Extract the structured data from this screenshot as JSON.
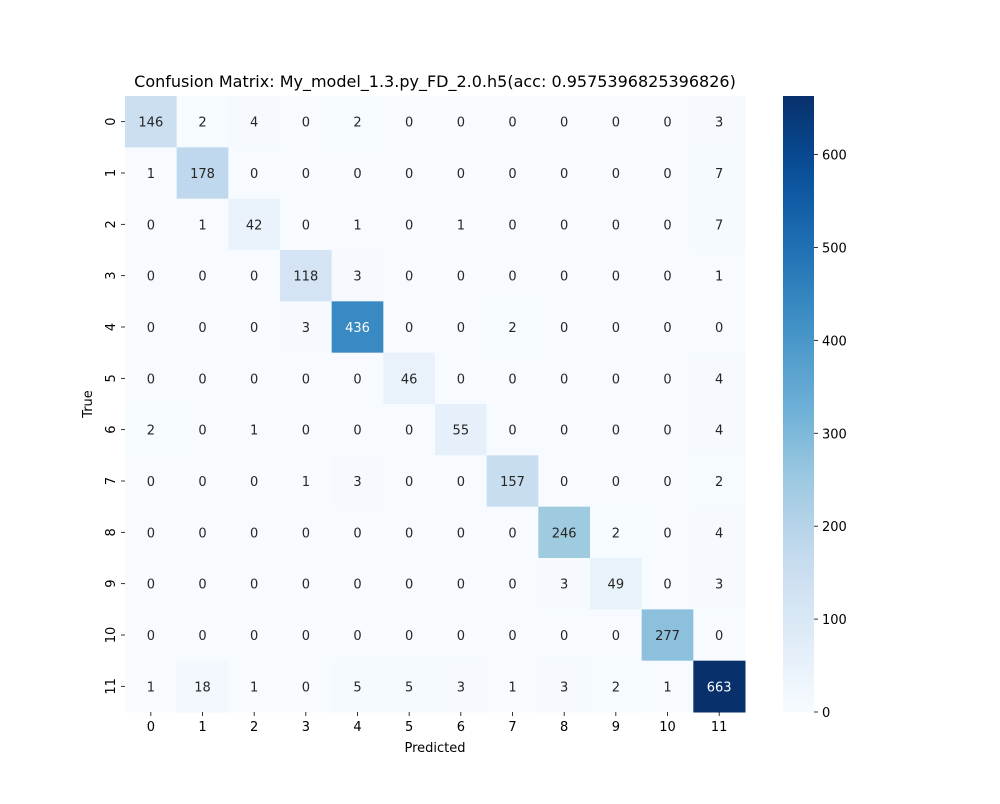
{
  "chart_data": {
    "type": "heatmap",
    "title": "Confusion Matrix: My_model_1.3.py_FD_2.0.h5(acc: 0.9575396825396826)",
    "xlabel": "Predicted",
    "ylabel": "True",
    "x_ticks": [
      "0",
      "1",
      "2",
      "3",
      "4",
      "5",
      "6",
      "7",
      "8",
      "9",
      "10",
      "11"
    ],
    "y_ticks": [
      "0",
      "1",
      "2",
      "3",
      "4",
      "5",
      "6",
      "7",
      "8",
      "9",
      "10",
      "11"
    ],
    "matrix": [
      [
        146,
        2,
        4,
        0,
        2,
        0,
        0,
        0,
        0,
        0,
        0,
        3
      ],
      [
        1,
        178,
        0,
        0,
        0,
        0,
        0,
        0,
        0,
        0,
        0,
        7
      ],
      [
        0,
        1,
        42,
        0,
        1,
        0,
        1,
        0,
        0,
        0,
        0,
        7
      ],
      [
        0,
        0,
        0,
        118,
        3,
        0,
        0,
        0,
        0,
        0,
        0,
        1
      ],
      [
        0,
        0,
        0,
        3,
        436,
        0,
        0,
        2,
        0,
        0,
        0,
        0
      ],
      [
        0,
        0,
        0,
        0,
        0,
        46,
        0,
        0,
        0,
        0,
        0,
        4
      ],
      [
        2,
        0,
        1,
        0,
        0,
        0,
        55,
        0,
        0,
        0,
        0,
        4
      ],
      [
        0,
        0,
        0,
        1,
        3,
        0,
        0,
        157,
        0,
        0,
        0,
        2
      ],
      [
        0,
        0,
        0,
        0,
        0,
        0,
        0,
        0,
        246,
        2,
        0,
        4
      ],
      [
        0,
        0,
        0,
        0,
        0,
        0,
        0,
        0,
        3,
        49,
        0,
        3
      ],
      [
        0,
        0,
        0,
        0,
        0,
        0,
        0,
        0,
        0,
        0,
        277,
        0
      ],
      [
        1,
        18,
        1,
        0,
        5,
        5,
        3,
        1,
        3,
        2,
        1,
        663
      ]
    ],
    "colorbar": {
      "range": [
        0,
        663
      ],
      "ticks": [
        0,
        100,
        200,
        300,
        400,
        500,
        600
      ],
      "colormap": "Blues",
      "low_color": "#f7fbff",
      "high_color": "#08306b"
    },
    "grid": false,
    "legend": "none"
  }
}
